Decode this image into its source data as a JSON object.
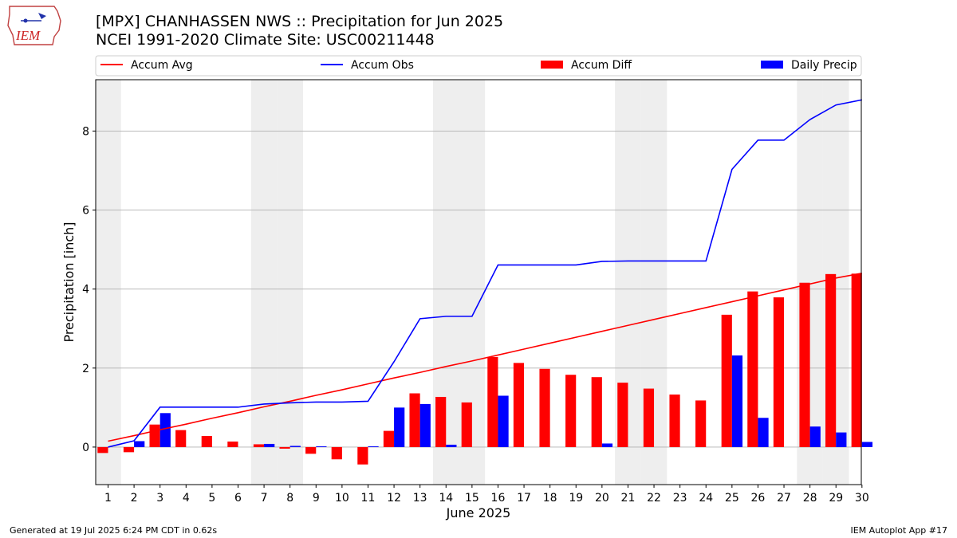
{
  "logo": {
    "text": "IEM"
  },
  "title": {
    "line1": "[MPX] CHANHASSEN NWS :: Precipitation for Jun 2025",
    "line2": "NCEI 1991-2020 Climate Site: USC00211448"
  },
  "footer": {
    "left": "Generated at 19 Jul 2025 6:24 PM CDT in 0.62s",
    "right": "IEM Autoplot App #17"
  },
  "colors": {
    "accum_avg": "#ff0000",
    "accum_obs": "#0000ff",
    "accum_diff": "#ff0000",
    "daily_precip": "#0000ff",
    "weekend_shade": "#eeeeee",
    "grid": "#b0b0b0"
  },
  "chart_data": {
    "type": "bar",
    "xlabel": "June 2025",
    "ylabel": "Precipitation [inch]",
    "ylim": [
      -0.95,
      9.3
    ],
    "yticks": [
      0,
      2,
      4,
      6,
      8
    ],
    "grid": "horizontal",
    "legend_placement": "top",
    "days": [
      1,
      2,
      3,
      4,
      5,
      6,
      7,
      8,
      9,
      10,
      11,
      12,
      13,
      14,
      15,
      16,
      17,
      18,
      19,
      20,
      21,
      22,
      23,
      24,
      25,
      26,
      27,
      28,
      29,
      30
    ],
    "weekend_days": [
      1,
      7,
      8,
      14,
      15,
      21,
      22,
      28,
      29
    ],
    "legend": [
      "Accum Avg",
      "Accum Obs",
      "Accum Diff",
      "Daily Precip"
    ],
    "series": [
      {
        "name": "Accum Avg",
        "kind": "line",
        "values": [
          0.15,
          0.29,
          0.44,
          0.58,
          0.73,
          0.87,
          1.02,
          1.16,
          1.31,
          1.45,
          1.6,
          1.75,
          1.89,
          2.04,
          2.18,
          2.33,
          2.48,
          2.63,
          2.78,
          2.93,
          3.08,
          3.23,
          3.38,
          3.53,
          3.68,
          3.83,
          3.98,
          4.13,
          4.28,
          4.4
        ]
      },
      {
        "name": "Accum Obs",
        "kind": "line",
        "values": [
          0.0,
          0.16,
          1.01,
          1.01,
          1.01,
          1.01,
          1.09,
          1.12,
          1.14,
          1.14,
          1.16,
          2.16,
          3.25,
          3.31,
          3.31,
          4.61,
          4.61,
          4.61,
          4.61,
          4.7,
          4.71,
          4.71,
          4.71,
          4.71,
          7.03,
          7.77,
          7.77,
          8.29,
          8.66,
          8.79
        ]
      },
      {
        "name": "Accum Diff",
        "kind": "bar",
        "values": [
          -0.15,
          -0.13,
          0.57,
          0.43,
          0.28,
          0.14,
          0.07,
          -0.04,
          -0.17,
          -0.31,
          -0.44,
          0.41,
          1.36,
          1.27,
          1.13,
          2.28,
          2.13,
          1.98,
          1.83,
          1.77,
          1.63,
          1.48,
          1.33,
          1.18,
          3.35,
          3.94,
          3.79,
          4.16,
          4.38,
          4.39
        ]
      },
      {
        "name": "Daily Precip",
        "kind": "bar",
        "values": [
          0.0,
          0.15,
          0.86,
          0.0,
          0.0,
          0.0,
          0.08,
          0.03,
          0.02,
          0.0,
          0.02,
          1.0,
          1.09,
          0.06,
          0.0,
          1.3,
          0.0,
          0.0,
          0.0,
          0.09,
          0.0,
          0.0,
          0.0,
          0.0,
          2.32,
          0.74,
          0.0,
          0.52,
          0.37,
          0.13
        ]
      }
    ]
  }
}
